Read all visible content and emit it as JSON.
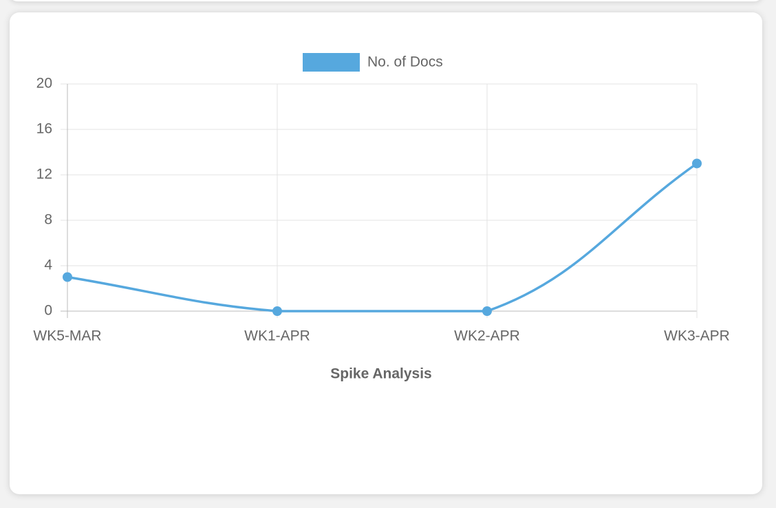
{
  "chart_data": {
    "type": "line",
    "x_label": "Spike Analysis",
    "categories": [
      "WK5-MAR",
      "WK1-APR",
      "WK2-APR",
      "WK3-APR"
    ],
    "series": [
      {
        "name": "No. of Docs",
        "color": "#56a8de",
        "values": [
          3,
          0,
          0,
          13
        ]
      }
    ],
    "ylim": [
      0,
      20
    ],
    "yticks": [
      0,
      4,
      8,
      12,
      16,
      20
    ],
    "grid": true,
    "legend": "top"
  }
}
